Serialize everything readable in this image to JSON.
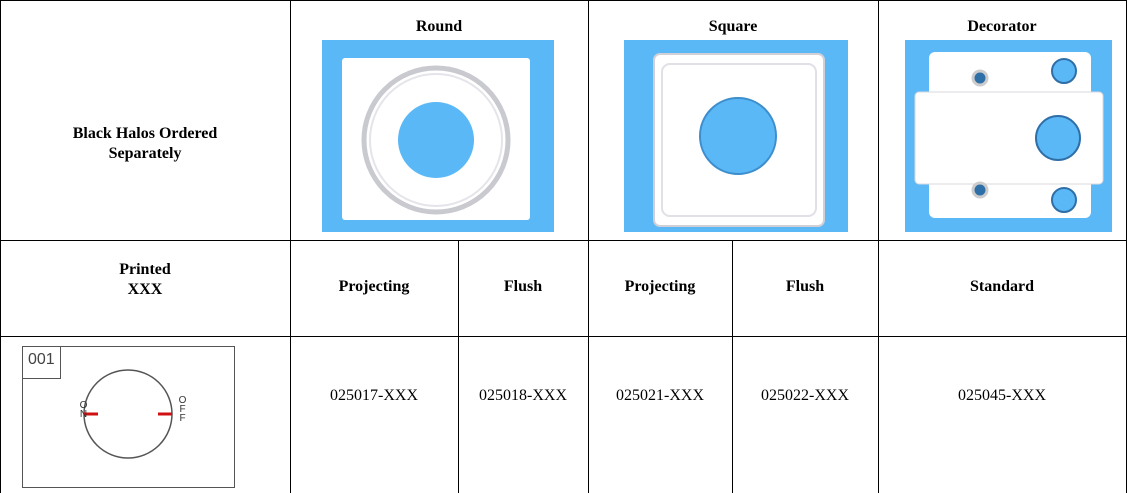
{
  "header": {
    "label": "Black Halos Ordered Separately",
    "groups": [
      "Round",
      "Square",
      "Decorator"
    ]
  },
  "subheader": {
    "label": [
      "Printed",
      "XXX"
    ],
    "columns": [
      "Projecting",
      "Flush",
      "Projecting",
      "Flush",
      "Standard"
    ]
  },
  "row": {
    "diagram": {
      "number": "001",
      "on": "ON",
      "off": "OFF"
    },
    "parts": [
      "025017-XXX",
      "025018-XXX",
      "025021-XXX",
      "025022-XXX",
      "025045-XXX"
    ]
  }
}
